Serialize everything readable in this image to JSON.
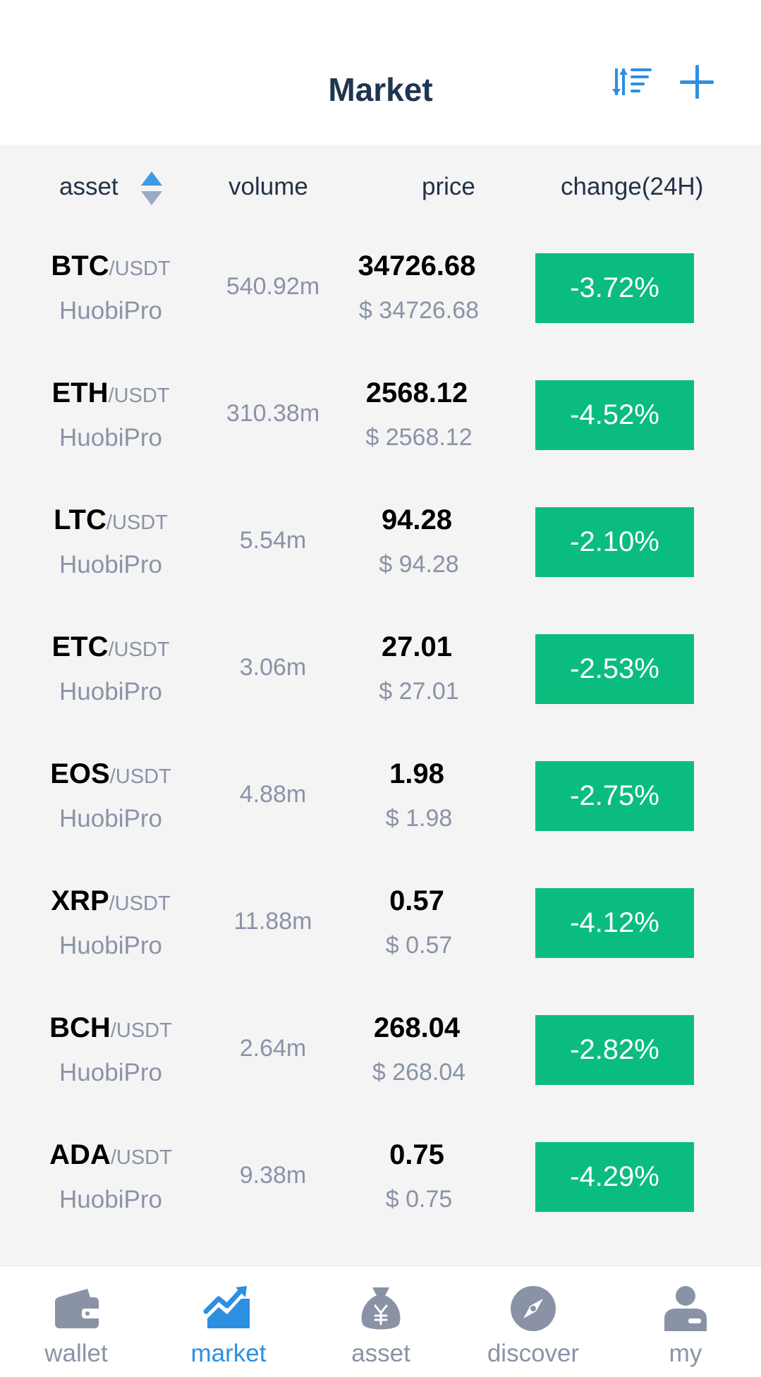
{
  "header": {
    "title": "Market"
  },
  "columns": {
    "asset": "asset",
    "volume": "volume",
    "price": "price",
    "change": "change(24H)"
  },
  "colors": {
    "accent": "#2d8fe0",
    "down": "#0abd7e",
    "muted": "#8a93a6",
    "title": "#1f3650"
  },
  "rows": [
    {
      "symbol": "BTC",
      "quote": "/USDT",
      "exchange": "HuobiPro",
      "volume": "540.92m",
      "price": "34726.68",
      "fiat": "$ 34726.68",
      "change": "-3.72%"
    },
    {
      "symbol": "ETH",
      "quote": "/USDT",
      "exchange": "HuobiPro",
      "volume": "310.38m",
      "price": "2568.12",
      "fiat": "$ 2568.12",
      "change": "-4.52%"
    },
    {
      "symbol": "LTC",
      "quote": "/USDT",
      "exchange": "HuobiPro",
      "volume": "5.54m",
      "price": "94.28",
      "fiat": "$ 94.28",
      "change": "-2.10%"
    },
    {
      "symbol": "ETC",
      "quote": "/USDT",
      "exchange": "HuobiPro",
      "volume": "3.06m",
      "price": "27.01",
      "fiat": "$ 27.01",
      "change": "-2.53%"
    },
    {
      "symbol": "EOS",
      "quote": "/USDT",
      "exchange": "HuobiPro",
      "volume": "4.88m",
      "price": "1.98",
      "fiat": "$ 1.98",
      "change": "-2.75%"
    },
    {
      "symbol": "XRP",
      "quote": "/USDT",
      "exchange": "HuobiPro",
      "volume": "11.88m",
      "price": "0.57",
      "fiat": "$ 0.57",
      "change": "-4.12%"
    },
    {
      "symbol": "BCH",
      "quote": "/USDT",
      "exchange": "HuobiPro",
      "volume": "2.64m",
      "price": "268.04",
      "fiat": "$ 268.04",
      "change": "-2.82%"
    },
    {
      "symbol": "ADA",
      "quote": "/USDT",
      "exchange": "HuobiPro",
      "volume": "9.38m",
      "price": "0.75",
      "fiat": "$ 0.75",
      "change": "-4.29%"
    }
  ],
  "tabs": [
    {
      "label": "wallet",
      "icon": "wallet-icon",
      "active": false
    },
    {
      "label": "market",
      "icon": "market-chart-icon",
      "active": true
    },
    {
      "label": "asset",
      "icon": "money-bag-icon",
      "active": false
    },
    {
      "label": "discover",
      "icon": "compass-icon",
      "active": false
    },
    {
      "label": "my",
      "icon": "profile-icon",
      "active": false
    }
  ]
}
